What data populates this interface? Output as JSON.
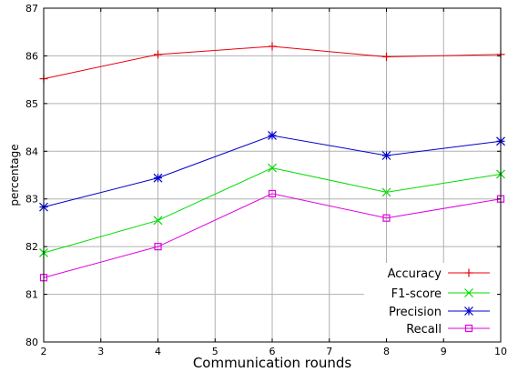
{
  "chart_data": {
    "type": "line",
    "xlabel": "Communication rounds",
    "ylabel": "percentage",
    "xlim": [
      2,
      10
    ],
    "ylim": [
      80,
      87
    ],
    "xticks": [
      2,
      3,
      4,
      5,
      6,
      7,
      8,
      9,
      10
    ],
    "yticks": [
      80,
      81,
      82,
      83,
      84,
      85,
      86,
      87
    ],
    "grid": true,
    "legend_position": "bottom-right",
    "x": [
      2,
      4,
      6,
      8,
      10
    ],
    "series": [
      {
        "name": "Accuracy",
        "color": "#e8000b",
        "marker": "plus",
        "values": [
          85.52,
          86.03,
          86.2,
          85.98,
          86.03
        ]
      },
      {
        "name": "F1-score",
        "color": "#00dd00",
        "marker": "cross",
        "values": [
          81.87,
          82.55,
          83.65,
          83.14,
          83.52
        ]
      },
      {
        "name": "Precision",
        "color": "#0000cc",
        "marker": "star",
        "values": [
          82.83,
          83.44,
          84.33,
          83.91,
          84.21
        ]
      },
      {
        "name": "Recall",
        "color": "#e000e0",
        "marker": "square",
        "values": [
          81.35,
          82.0,
          83.11,
          82.6,
          83.0
        ]
      }
    ]
  }
}
